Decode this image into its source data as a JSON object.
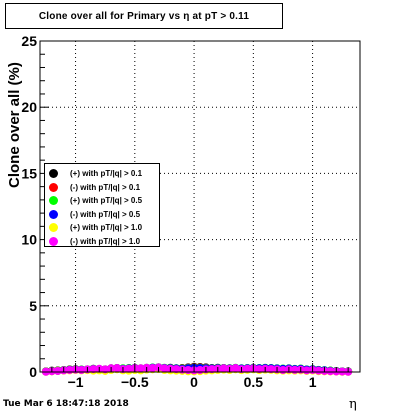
{
  "title": "Clone  over all for Primary vs   η at pT > 0.11",
  "footer": "Tue Mar  6 18:47:18 2018",
  "chart_data": {
    "type": "scatter",
    "title": "Clone  over all for Primary vs   η at pT > 0.11",
    "xlabel": "η",
    "ylabel": "Clone  over all (%)",
    "xlim": [
      -1.3,
      1.4
    ],
    "ylim": [
      0,
      25
    ],
    "xticks": [
      -1,
      -0.5,
      0,
      0.5,
      1
    ],
    "xtick_labels": [
      "−1",
      "−0.5",
      "0",
      "0.5",
      "1"
    ],
    "yticks": [
      0,
      5,
      10,
      15,
      20,
      25
    ],
    "ytick_labels": [
      "0",
      "5",
      "10",
      "15",
      "20",
      "25"
    ],
    "grid": true,
    "legend_position": "middle-left",
    "x": [
      -1.25,
      -1.2,
      -1.15,
      -1.1,
      -1.05,
      -1.0,
      -0.95,
      -0.9,
      -0.85,
      -0.8,
      -0.75,
      -0.7,
      -0.65,
      -0.6,
      -0.55,
      -0.5,
      -0.45,
      -0.4,
      -0.35,
      -0.3,
      -0.25,
      -0.2,
      -0.15,
      -0.1,
      -0.05,
      0.0,
      0.05,
      0.1,
      0.15,
      0.2,
      0.25,
      0.3,
      0.35,
      0.4,
      0.45,
      0.5,
      0.55,
      0.6,
      0.65,
      0.7,
      0.75,
      0.8,
      0.85,
      0.9,
      0.95,
      1.0,
      1.05,
      1.1,
      1.15,
      1.2,
      1.25,
      1.3
    ],
    "series": [
      {
        "name": "(+) with pT/|q| > 0.1",
        "color": "#000000",
        "values": [
          0.05,
          0.1,
          0.12,
          0.15,
          0.2,
          0.22,
          0.18,
          0.2,
          0.25,
          0.22,
          0.2,
          0.28,
          0.3,
          0.25,
          0.28,
          0.3,
          0.26,
          0.3,
          0.32,
          0.35,
          0.3,
          0.32,
          0.28,
          0.3,
          0.35,
          0.4,
          0.38,
          0.35,
          0.3,
          0.32,
          0.3,
          0.28,
          0.3,
          0.25,
          0.28,
          0.3,
          0.26,
          0.3,
          0.28,
          0.25,
          0.22,
          0.25,
          0.2,
          0.22,
          0.18,
          0.2,
          0.15,
          0.12,
          0.1,
          0.08,
          0.05,
          0.05
        ]
      },
      {
        "name": "(-) with pT/|q| > 0.1",
        "color": "#ff0000",
        "values": [
          0.05,
          0.08,
          0.1,
          0.12,
          0.18,
          0.2,
          0.16,
          0.18,
          0.22,
          0.2,
          0.18,
          0.25,
          0.28,
          0.22,
          0.25,
          0.28,
          0.24,
          0.28,
          0.3,
          0.32,
          0.28,
          0.3,
          0.26,
          0.28,
          0.32,
          0.38,
          0.35,
          0.32,
          0.28,
          0.3,
          0.28,
          0.26,
          0.28,
          0.22,
          0.25,
          0.28,
          0.24,
          0.28,
          0.26,
          0.22,
          0.2,
          0.22,
          0.18,
          0.2,
          0.16,
          0.18,
          0.12,
          0.1,
          0.08,
          0.06,
          0.04,
          0.03
        ]
      },
      {
        "name": "(+) with pT/|q| > 0.5",
        "color": "#00ff00",
        "values": [
          0.04,
          0.08,
          0.1,
          0.14,
          0.18,
          0.2,
          0.18,
          0.2,
          0.24,
          0.22,
          0.2,
          0.26,
          0.3,
          0.28,
          0.3,
          0.32,
          0.28,
          0.32,
          0.34,
          0.36,
          0.32,
          0.3,
          0.28,
          0.26,
          0.3,
          0.34,
          0.32,
          0.3,
          0.28,
          0.3,
          0.3,
          0.28,
          0.32,
          0.28,
          0.3,
          0.32,
          0.3,
          0.32,
          0.3,
          0.28,
          0.26,
          0.28,
          0.24,
          0.26,
          0.2,
          0.22,
          0.16,
          0.14,
          0.1,
          0.08,
          0.05,
          0.04
        ]
      },
      {
        "name": "(-) with pT/|q| > 0.5",
        "color": "#0000ff",
        "values": [
          0.03,
          0.06,
          0.08,
          0.12,
          0.16,
          0.18,
          0.16,
          0.18,
          0.22,
          0.2,
          0.18,
          0.24,
          0.28,
          0.24,
          0.26,
          0.3,
          0.26,
          0.3,
          0.32,
          0.34,
          0.3,
          0.28,
          0.26,
          0.24,
          0.28,
          0.32,
          0.3,
          0.28,
          0.26,
          0.28,
          0.28,
          0.26,
          0.3,
          0.26,
          0.28,
          0.3,
          0.28,
          0.3,
          0.28,
          0.26,
          0.24,
          0.26,
          0.22,
          0.24,
          0.18,
          0.2,
          0.14,
          0.12,
          0.08,
          0.06,
          0.04,
          0.03
        ]
      },
      {
        "name": "(+) with pT/|q| > 1.0",
        "color": "#ffff00",
        "values": [
          0.02,
          0.05,
          0.08,
          0.1,
          0.12,
          0.15,
          0.12,
          0.14,
          0.1,
          0.12,
          0.08,
          0.15,
          0.2,
          0.12,
          0.1,
          0.15,
          0.12,
          0.18,
          0.2,
          0.22,
          0.15,
          0.12,
          0.1,
          0.08,
          0.05,
          0.04,
          0.06,
          0.1,
          0.12,
          0.15,
          0.18,
          0.15,
          0.2,
          0.14,
          0.16,
          0.2,
          0.14,
          0.18,
          0.16,
          0.12,
          0.1,
          0.12,
          0.1,
          0.12,
          0.08,
          0.1,
          0.06,
          0.05,
          0.04,
          0.03,
          0.02,
          0.02
        ]
      },
      {
        "name": "(-) with pT/|q| > 1.0",
        "color": "#ff00ff",
        "values": [
          0.02,
          0.06,
          0.08,
          0.12,
          0.15,
          0.18,
          0.15,
          0.2,
          0.22,
          0.25,
          0.2,
          0.28,
          0.3,
          0.22,
          0.25,
          0.3,
          0.28,
          0.32,
          0.3,
          0.35,
          0.28,
          0.25,
          0.22,
          0.18,
          0.15,
          0.12,
          0.15,
          0.2,
          0.22,
          0.25,
          0.28,
          0.25,
          0.3,
          0.22,
          0.25,
          0.28,
          0.22,
          0.25,
          0.22,
          0.2,
          0.15,
          0.2,
          0.16,
          0.18,
          0.12,
          0.15,
          0.1,
          0.08,
          0.06,
          0.04,
          0.03,
          0.02
        ]
      }
    ]
  }
}
